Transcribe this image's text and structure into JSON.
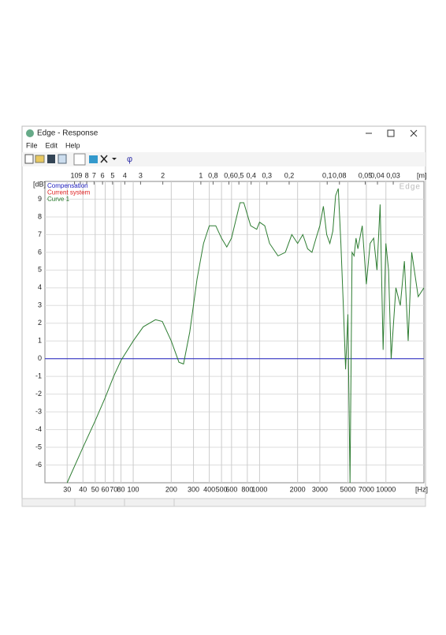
{
  "window": {
    "title": "Edge - Response",
    "menu": [
      "File",
      "Edit",
      "Help"
    ]
  },
  "chart_data": {
    "type": "line",
    "watermark": "Edge",
    "y_label": "[dB]",
    "x_label": "[Hz]",
    "top_label": "[m]",
    "xscale": "log",
    "grid": true,
    "xlim": [
      20,
      20000
    ],
    "ylim": [
      -7,
      10
    ],
    "xticks": [
      30,
      40,
      50,
      60,
      70,
      80,
      100,
      200,
      300,
      400,
      500,
      600,
      800,
      1000,
      2000,
      3000,
      5000,
      7000,
      10000
    ],
    "yticks": [
      -6,
      -5,
      -4,
      -3,
      -2,
      -1,
      0,
      1,
      2,
      3,
      4,
      5,
      6,
      7,
      8,
      9
    ],
    "top_ticks": [
      10,
      9,
      8,
      7,
      6,
      5,
      4,
      3,
      2,
      1,
      {
        "value": 0.8,
        "label": "0,8"
      },
      {
        "value": 0.6,
        "label": "0,6"
      },
      {
        "value": 0.5,
        "label": "0,5"
      },
      {
        "value": 0.4,
        "label": "0,4"
      },
      {
        "value": 0.3,
        "label": "0,3"
      },
      {
        "value": 0.2,
        "label": "0,2"
      },
      {
        "value": 0.1,
        "label": "0,1"
      },
      {
        "value": 0.08,
        "label": "0,08"
      },
      {
        "value": 0.05,
        "label": "0,05"
      },
      {
        "value": 0.04,
        "label": "0,04"
      },
      {
        "value": 0.03,
        "label": "0,03"
      }
    ],
    "series": [
      {
        "name": "Compensation",
        "color": "#2020c0",
        "x": [
          20,
          20000
        ],
        "values": [
          0,
          0
        ]
      },
      {
        "name": "Current system",
        "color": "#e02020"
      },
      {
        "name": "Curve 1",
        "color": "#2e7d32",
        "x": [
          30,
          40,
          50,
          60,
          70,
          80,
          100,
          120,
          150,
          170,
          200,
          230,
          250,
          280,
          320,
          360,
          400,
          450,
          500,
          550,
          600,
          700,
          750,
          850,
          950,
          1000,
          1100,
          1200,
          1400,
          1600,
          1800,
          2000,
          2200,
          2400,
          2600,
          2800,
          3000,
          3200,
          3400,
          3600,
          3800,
          4000,
          4200,
          4400,
          4600,
          4800,
          5000,
          5200,
          5400,
          5600,
          5800,
          6000,
          6500,
          7000,
          7500,
          8000,
          8500,
          9000,
          9500,
          10000,
          10500,
          11000,
          12000,
          13000,
          14000,
          15000,
          16000,
          18000,
          20000
        ],
        "values": [
          -7,
          -5,
          -3.5,
          -2.2,
          -1,
          -0.1,
          1,
          1.8,
          2.2,
          2.1,
          1,
          -0.2,
          -0.3,
          1.5,
          4.5,
          6.5,
          7.5,
          7.5,
          6.8,
          6.3,
          6.8,
          8.8,
          8.8,
          7.5,
          7.3,
          7.7,
          7.5,
          6.5,
          5.8,
          6,
          7,
          6.5,
          7,
          6.2,
          6,
          6.8,
          7.5,
          8.6,
          7,
          6.5,
          7.2,
          9.2,
          9.6,
          6.5,
          3,
          -0.6,
          2.5,
          -7,
          6,
          5.8,
          6.8,
          6.2,
          7.5,
          4.2,
          6.5,
          6.8,
          5,
          8.7,
          0.5,
          6.5,
          5,
          0,
          4,
          3,
          5.5,
          1,
          6,
          3.5,
          4
        ]
      }
    ]
  }
}
